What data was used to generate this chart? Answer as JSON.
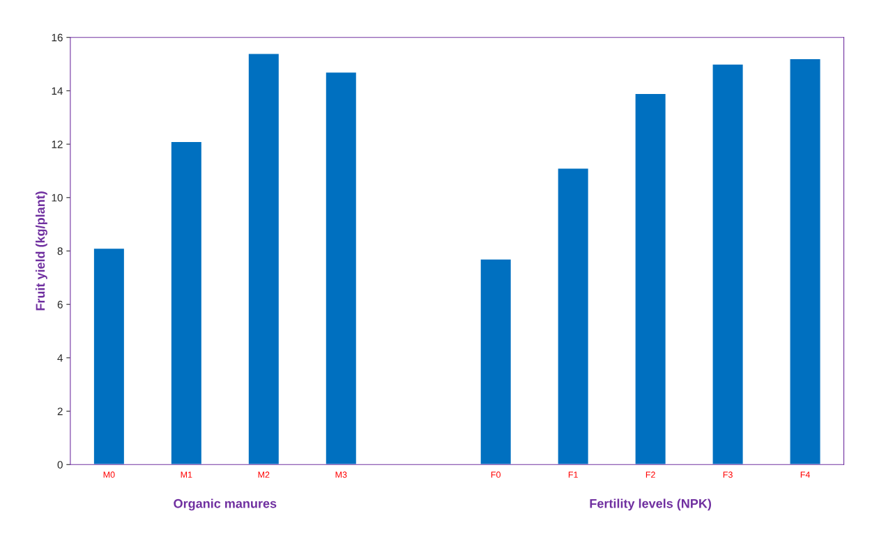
{
  "chart_data": {
    "type": "bar",
    "ylabel": "Fruit yield (kg/plant)",
    "categories": [
      "M0",
      "M1",
      "M2",
      "M3",
      null,
      "F0",
      "F1",
      "F2",
      "F3",
      "F4"
    ],
    "values": [
      8.1,
      12.1,
      15.4,
      14.7,
      null,
      7.7,
      11.1,
      13.9,
      15.0,
      15.2
    ],
    "color": "#0070c0",
    "ylim": [
      0,
      16
    ],
    "yticks": [
      0,
      2,
      4,
      6,
      8,
      10,
      12,
      14,
      16
    ],
    "grid": false,
    "annotations": [
      "Organic manures",
      "Fertility levels (NPK)"
    ]
  }
}
